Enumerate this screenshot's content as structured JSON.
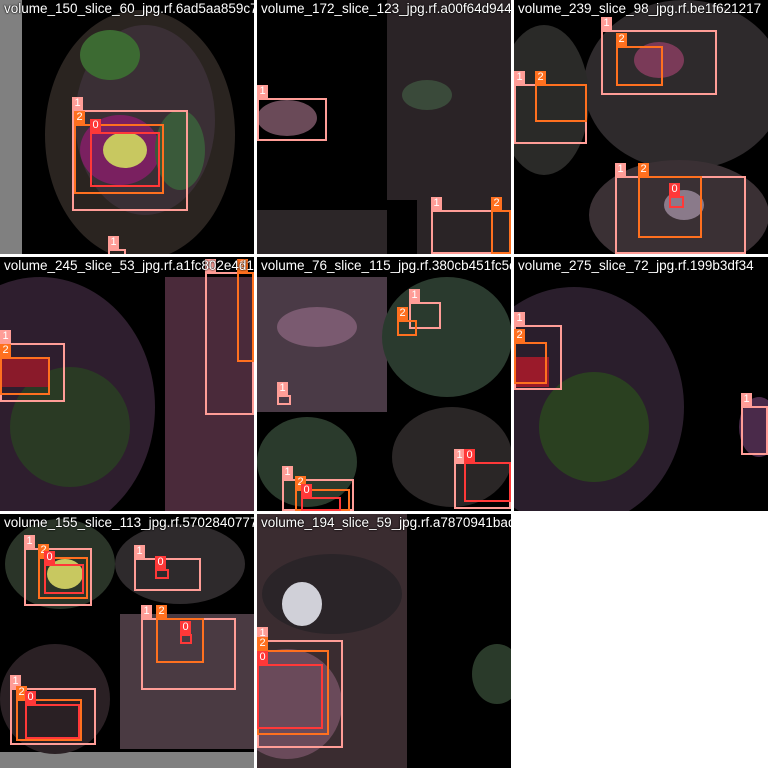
{
  "class_colors": {
    "0": "#ff3838",
    "1": "#ff9d97",
    "2": "#ff701f"
  },
  "tiles": [
    {
      "title": "volume_150_slice_60_jpg.rf.6ad5aa859c7dcfe",
      "labels": [
        "1",
        "2",
        "0",
        "1"
      ]
    },
    {
      "title": "volume_172_slice_123_jpg.rf.a00f64d94486f",
      "labels": [
        "1",
        "1",
        "2"
      ]
    },
    {
      "title": "volume_239_slice_98_jpg.rf.be1f621217",
      "labels": [
        "1",
        "2",
        "1",
        "2",
        "1",
        "1",
        "2",
        "0"
      ]
    },
    {
      "title": "volume_245_slice_53_jpg.rf.a1fc802e4d1fff",
      "labels": [
        "1",
        "2",
        "1",
        "2"
      ]
    },
    {
      "title": "volume_76_slice_115_jpg.rf.380cb451fc5dd6d6",
      "labels": [
        "1",
        "2",
        "1",
        "1",
        "2",
        "0",
        "1",
        "0"
      ]
    },
    {
      "title": "volume_275_slice_72_jpg.rf.199b3df34",
      "labels": [
        "1",
        "2",
        "1"
      ]
    },
    {
      "title": "volume_155_slice_113_jpg.rf.5702840777f02",
      "labels": [
        "1",
        "2",
        "0",
        "1",
        "0",
        "1",
        "2",
        "0",
        "1",
        "2",
        "0"
      ]
    },
    {
      "title": "volume_194_slice_59_jpg.rf.a7870941bad9a",
      "labels": [
        "1",
        "2",
        "0"
      ]
    }
  ]
}
